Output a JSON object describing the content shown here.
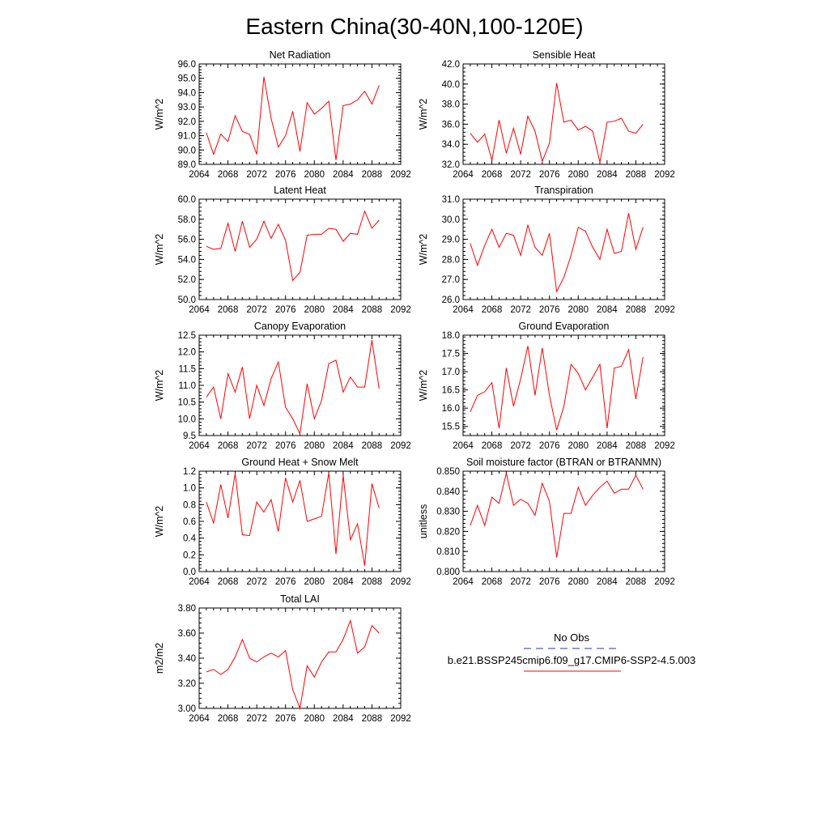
{
  "title": "Eastern China(30-40N,100-120E)",
  "line_color": "#ff0000",
  "obs_line_color": "#3333aa",
  "legend": {
    "obs_label": "No Obs",
    "model_label": "b.e21.BSSP245cmip6.f09_g17.CMIP6-SSP2-4.5.003"
  },
  "chart_data": [
    {
      "type": "line",
      "title": "Net Radiation",
      "ylabel": "W/m^2",
      "xlim": [
        2064,
        2092
      ],
      "xticks": [
        "2064",
        "2068",
        "2072",
        "2076",
        "2080",
        "2084",
        "2088",
        "2092"
      ],
      "ylim": [
        89.0,
        96.0
      ],
      "yticks": [
        "89.0",
        "90.0",
        "91.0",
        "92.0",
        "93.0",
        "94.0",
        "95.0",
        "96.0"
      ],
      "x": [
        2065,
        2066,
        2067,
        2068,
        2069,
        2070,
        2071,
        2072,
        2073,
        2074,
        2075,
        2076,
        2077,
        2078,
        2079,
        2080,
        2081,
        2082,
        2083,
        2084,
        2085,
        2086,
        2087,
        2088,
        2089
      ],
      "series": [
        {
          "values": [
            91.2,
            89.7,
            91.1,
            90.6,
            92.4,
            91.3,
            91.1,
            89.7,
            95.1,
            92.2,
            90.2,
            91.0,
            92.7,
            89.9,
            93.3,
            92.5,
            92.9,
            93.4,
            89.3,
            93.1,
            93.2,
            93.5,
            94.1,
            93.2,
            94.5
          ]
        }
      ]
    },
    {
      "type": "line",
      "title": "Sensible Heat",
      "ylabel": "W/m^2",
      "xlim": [
        2064,
        2092
      ],
      "xticks": [
        "2064",
        "2068",
        "2072",
        "2076",
        "2080",
        "2084",
        "2088",
        "2092"
      ],
      "ylim": [
        32.0,
        42.0
      ],
      "yticks": [
        "32.0",
        "34.0",
        "36.0",
        "38.0",
        "40.0",
        "42.0"
      ],
      "x": [
        2065,
        2066,
        2067,
        2068,
        2069,
        2070,
        2071,
        2072,
        2073,
        2074,
        2075,
        2076,
        2077,
        2078,
        2079,
        2080,
        2081,
        2082,
        2083,
        2084,
        2085,
        2086,
        2087,
        2088,
        2089
      ],
      "series": [
        {
          "values": [
            35.1,
            34.2,
            35.0,
            32.4,
            36.4,
            33.1,
            35.6,
            33.0,
            36.8,
            35.3,
            32.3,
            34.1,
            40.1,
            36.2,
            36.4,
            35.4,
            35.8,
            35.3,
            32.2,
            36.2,
            36.3,
            36.6,
            35.3,
            35.1,
            36.0
          ]
        }
      ]
    },
    {
      "type": "line",
      "title": "Latent Heat",
      "ylabel": "W/m^2",
      "xlim": [
        2064,
        2092
      ],
      "xticks": [
        "2064",
        "2068",
        "2072",
        "2076",
        "2080",
        "2084",
        "2088",
        "2092"
      ],
      "ylim": [
        50.0,
        60.0
      ],
      "yticks": [
        "50.0",
        "52.0",
        "54.0",
        "56.0",
        "58.0",
        "60.0"
      ],
      "x": [
        2065,
        2066,
        2067,
        2068,
        2069,
        2070,
        2071,
        2072,
        2073,
        2074,
        2075,
        2076,
        2077,
        2078,
        2079,
        2080,
        2081,
        2082,
        2083,
        2084,
        2085,
        2086,
        2087,
        2088,
        2089
      ],
      "series": [
        {
          "values": [
            55.3,
            55.0,
            55.1,
            57.6,
            54.8,
            57.8,
            55.2,
            56.0,
            57.8,
            56.1,
            57.5,
            55.9,
            51.9,
            52.7,
            56.4,
            56.5,
            56.5,
            57.1,
            57.0,
            55.8,
            56.6,
            56.5,
            58.8,
            57.1,
            57.9
          ]
        }
      ]
    },
    {
      "type": "line",
      "title": "Transpiration",
      "ylabel": "W/m^2",
      "xlim": [
        2064,
        2092
      ],
      "xticks": [
        "2064",
        "2068",
        "2072",
        "2076",
        "2080",
        "2084",
        "2088",
        "2092"
      ],
      "ylim": [
        26.0,
        31.0
      ],
      "yticks": [
        "26.0",
        "27.0",
        "28.0",
        "29.0",
        "30.0",
        "31.0"
      ],
      "x": [
        2065,
        2066,
        2067,
        2068,
        2069,
        2070,
        2071,
        2072,
        2073,
        2074,
        2075,
        2076,
        2077,
        2078,
        2079,
        2080,
        2081,
        2082,
        2083,
        2084,
        2085,
        2086,
        2087,
        2088,
        2089
      ],
      "series": [
        {
          "values": [
            28.8,
            27.7,
            28.7,
            29.5,
            28.6,
            29.3,
            29.2,
            28.2,
            29.7,
            28.6,
            28.2,
            29.3,
            26.4,
            27.1,
            28.2,
            29.6,
            29.4,
            28.6,
            28.0,
            29.5,
            28.3,
            28.4,
            30.3,
            28.5,
            29.6
          ]
        }
      ]
    },
    {
      "type": "line",
      "title": "Canopy Evaporation",
      "ylabel": "W/m^2",
      "xlim": [
        2064,
        2092
      ],
      "xticks": [
        "2064",
        "2068",
        "2072",
        "2076",
        "2080",
        "2084",
        "2088",
        "2092"
      ],
      "ylim": [
        9.5,
        12.5
      ],
      "yticks": [
        "9.5",
        "10.0",
        "10.5",
        "11.0",
        "11.5",
        "12.0",
        "12.5"
      ],
      "x": [
        2065,
        2066,
        2067,
        2068,
        2069,
        2070,
        2071,
        2072,
        2073,
        2074,
        2075,
        2076,
        2077,
        2078,
        2079,
        2080,
        2081,
        2082,
        2083,
        2084,
        2085,
        2086,
        2087,
        2088,
        2089
      ],
      "series": [
        {
          "values": [
            10.65,
            10.95,
            10.0,
            11.35,
            10.8,
            11.55,
            10.0,
            11.0,
            10.4,
            11.2,
            11.7,
            10.35,
            10.0,
            9.55,
            11.05,
            10.0,
            10.55,
            11.65,
            11.75,
            10.8,
            11.25,
            10.95,
            10.95,
            12.35,
            10.9
          ]
        }
      ]
    },
    {
      "type": "line",
      "title": "Ground Evaporation",
      "ylabel": "W/m^2",
      "xlim": [
        2064,
        2092
      ],
      "xticks": [
        "2064",
        "2068",
        "2072",
        "2076",
        "2080",
        "2084",
        "2088",
        "2092"
      ],
      "ylim": [
        15.25,
        18.0
      ],
      "yticks": [
        "15.5",
        "16.0",
        "16.5",
        "17.0",
        "17.5",
        "18.0"
      ],
      "x": [
        2065,
        2066,
        2067,
        2068,
        2069,
        2070,
        2071,
        2072,
        2073,
        2074,
        2075,
        2076,
        2077,
        2078,
        2079,
        2080,
        2081,
        2082,
        2083,
        2084,
        2085,
        2086,
        2087,
        2088,
        2089
      ],
      "series": [
        {
          "values": [
            15.9,
            16.35,
            16.45,
            16.7,
            15.45,
            17.1,
            16.05,
            16.8,
            17.7,
            16.35,
            17.65,
            16.35,
            15.4,
            16.05,
            17.2,
            16.95,
            16.5,
            16.85,
            17.2,
            15.45,
            17.1,
            17.15,
            17.6,
            16.25,
            17.4
          ]
        }
      ]
    },
    {
      "type": "line",
      "title": "Ground Heat + Snow Melt",
      "ylabel": "W/m^2",
      "xlim": [
        2064,
        2092
      ],
      "xticks": [
        "2064",
        "2068",
        "2072",
        "2076",
        "2080",
        "2084",
        "2088",
        "2092"
      ],
      "ylim": [
        0.0,
        1.2
      ],
      "yticks": [
        "0.0",
        "0.2",
        "0.4",
        "0.6",
        "0.8",
        "1.0",
        "1.2"
      ],
      "x": [
        2065,
        2066,
        2067,
        2068,
        2069,
        2070,
        2071,
        2072,
        2073,
        2074,
        2075,
        2076,
        2077,
        2078,
        2079,
        2080,
        2081,
        2082,
        2083,
        2084,
        2085,
        2086,
        2087,
        2088,
        2089
      ],
      "series": [
        {
          "values": [
            0.83,
            0.58,
            1.04,
            0.64,
            1.17,
            0.44,
            0.43,
            0.83,
            0.71,
            0.86,
            0.48,
            1.12,
            0.83,
            1.09,
            0.6,
            0.63,
            0.66,
            1.18,
            0.21,
            1.15,
            0.38,
            0.57,
            0.07,
            1.05,
            0.76
          ]
        }
      ]
    },
    {
      "type": "line",
      "title": "Soil moisture factor (BTRAN or BTRANMN)",
      "ylabel": "unitless",
      "xlim": [
        2064,
        2092
      ],
      "xticks": [
        "2064",
        "2068",
        "2072",
        "2076",
        "2080",
        "2084",
        "2088",
        "2092"
      ],
      "ylim": [
        0.8,
        0.85
      ],
      "yticks": [
        "0.800",
        "0.810",
        "0.820",
        "0.830",
        "0.840",
        "0.850"
      ],
      "x": [
        2065,
        2066,
        2067,
        2068,
        2069,
        2070,
        2071,
        2072,
        2073,
        2074,
        2075,
        2076,
        2077,
        2078,
        2079,
        2080,
        2081,
        2082,
        2083,
        2084,
        2085,
        2086,
        2087,
        2088,
        2089
      ],
      "series": [
        {
          "values": [
            0.823,
            0.833,
            0.823,
            0.837,
            0.834,
            0.849,
            0.833,
            0.836,
            0.834,
            0.828,
            0.844,
            0.835,
            0.807,
            0.829,
            0.829,
            0.842,
            0.833,
            0.838,
            0.842,
            0.845,
            0.839,
            0.841,
            0.841,
            0.848,
            0.841
          ]
        }
      ]
    },
    {
      "type": "line",
      "title": "Total LAI",
      "ylabel": "m2/m2",
      "xlim": [
        2064,
        2092
      ],
      "xticks": [
        "2064",
        "2068",
        "2072",
        "2076",
        "2080",
        "2084",
        "2088",
        "2092"
      ],
      "ylim": [
        3.0,
        3.8
      ],
      "yticks": [
        "3.00",
        "3.20",
        "3.40",
        "3.60",
        "3.80"
      ],
      "x": [
        2065,
        2066,
        2067,
        2068,
        2069,
        2070,
        2071,
        2072,
        2073,
        2074,
        2075,
        2076,
        2077,
        2078,
        2079,
        2080,
        2081,
        2082,
        2083,
        2084,
        2085,
        2086,
        2087,
        2088,
        2089
      ],
      "series": [
        {
          "values": [
            3.29,
            3.31,
            3.27,
            3.31,
            3.41,
            3.55,
            3.4,
            3.37,
            3.41,
            3.44,
            3.41,
            3.46,
            3.15,
            3.0,
            3.34,
            3.25,
            3.37,
            3.45,
            3.45,
            3.55,
            3.7,
            3.44,
            3.49,
            3.66,
            3.6
          ]
        }
      ]
    }
  ]
}
